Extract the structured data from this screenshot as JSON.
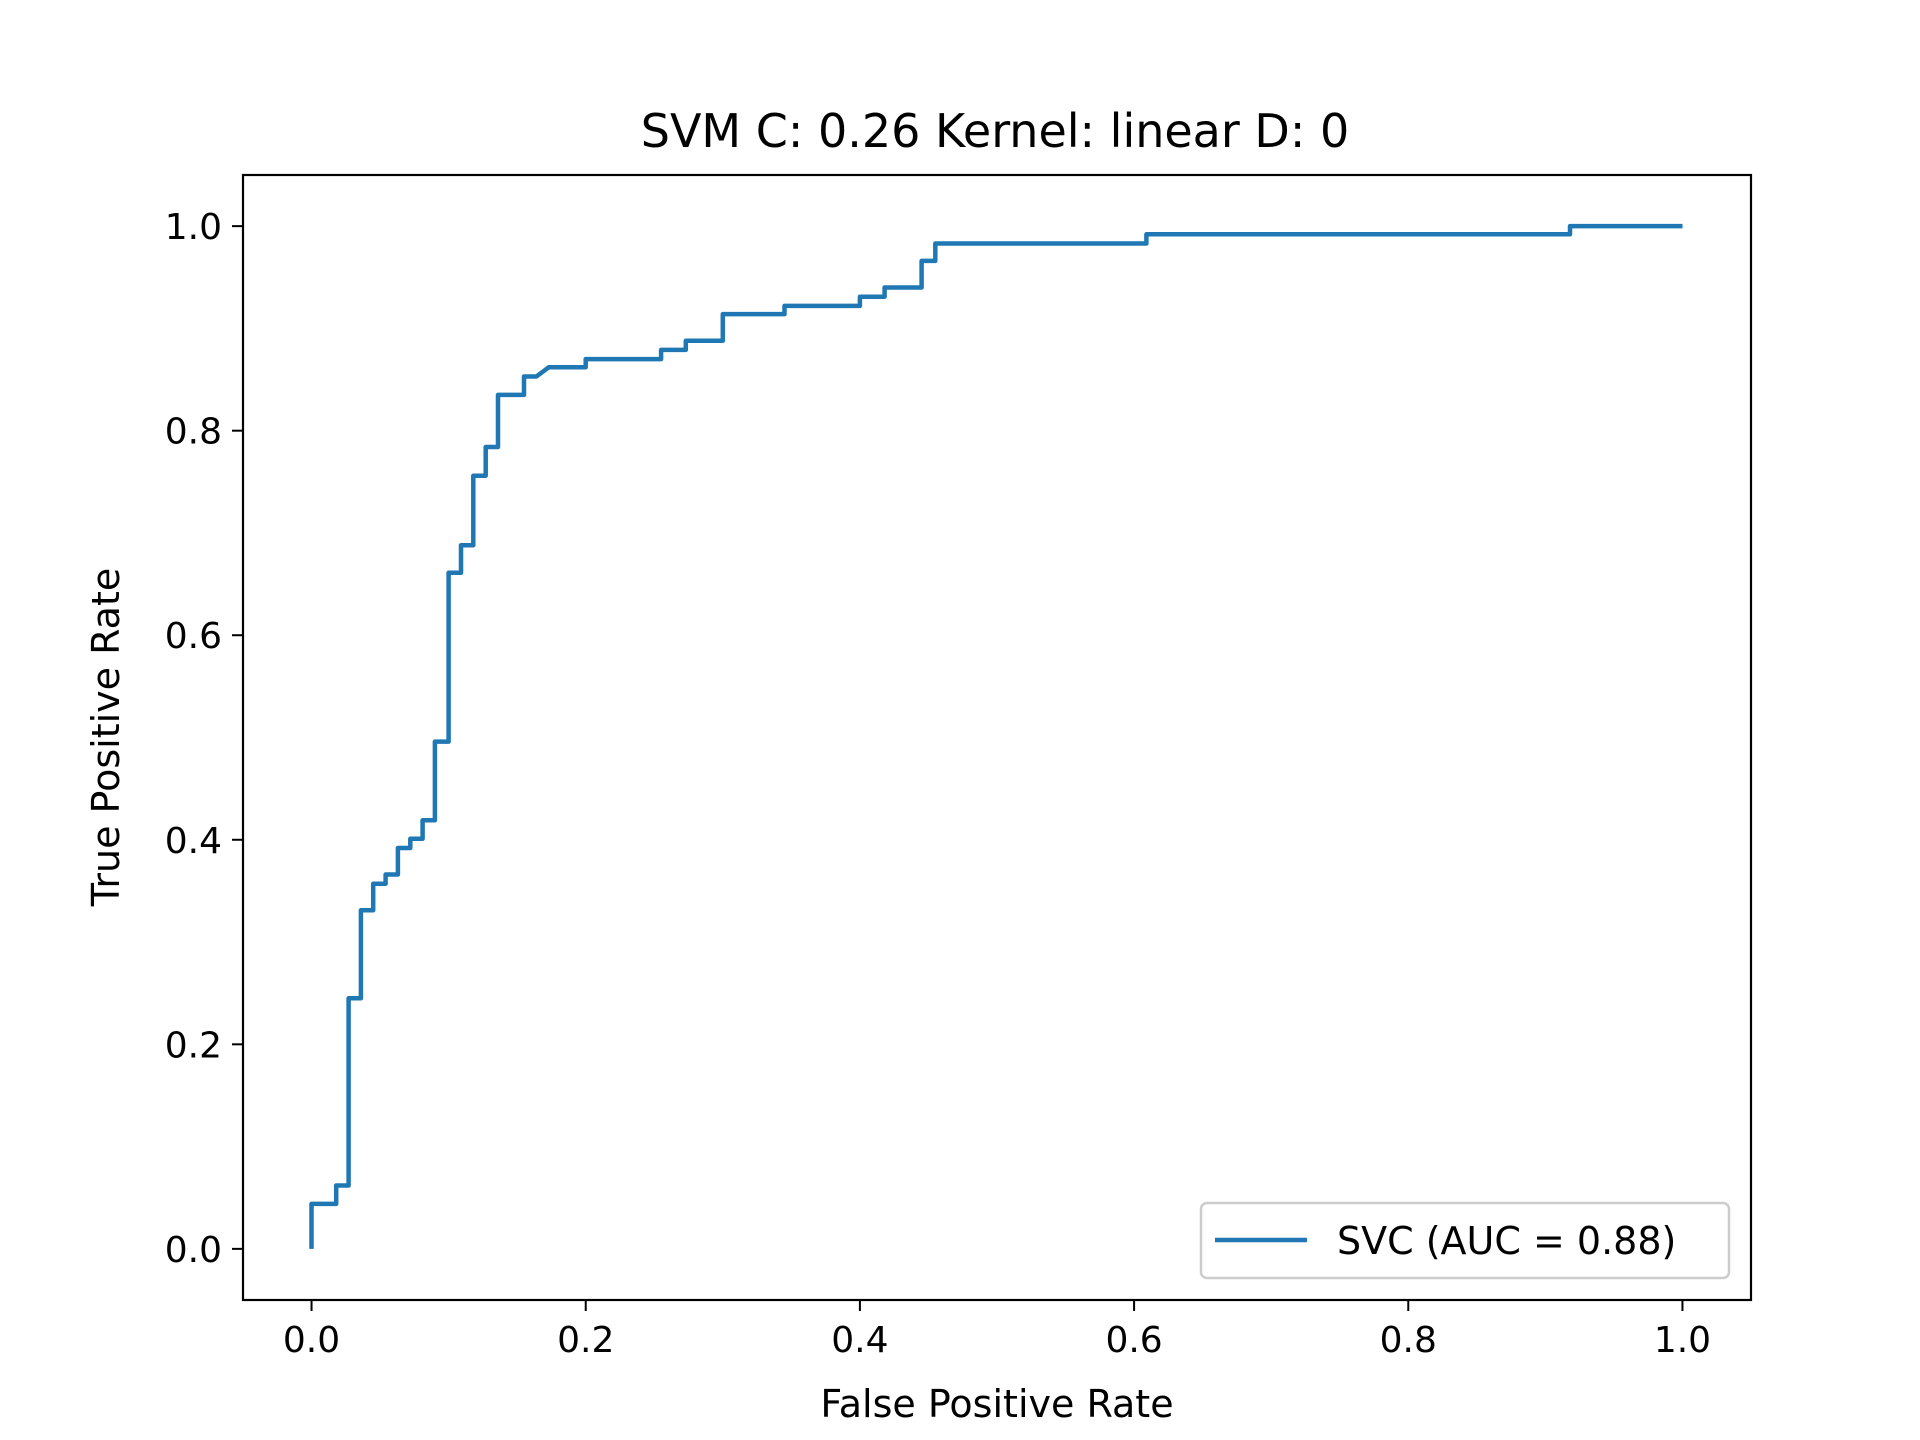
{
  "chart_data": {
    "type": "line",
    "title": "SVM C: 0.26 Kernel: linear D: 0",
    "xlabel": "False Positive Rate",
    "ylabel": "True Positive Rate",
    "xlim": [
      -0.05,
      1.05
    ],
    "ylim": [
      -0.05,
      1.05
    ],
    "xticks": [
      0.0,
      0.2,
      0.4,
      0.6,
      0.8,
      1.0
    ],
    "xtick_labels": [
      "0.0",
      "0.2",
      "0.4",
      "0.6",
      "0.8",
      "1.0"
    ],
    "yticks": [
      0.0,
      0.2,
      0.4,
      0.6,
      0.8,
      1.0
    ],
    "ytick_labels": [
      "0.0",
      "0.2",
      "0.4",
      "0.6",
      "0.8",
      "1.0"
    ],
    "grid": false,
    "legend_position": "lower-right",
    "series": [
      {
        "name": "SVC (AUC = 0.88)",
        "color": "#1f77b4",
        "x": [
          0.0,
          0.0,
          0.018,
          0.018,
          0.027,
          0.027,
          0.036,
          0.036,
          0.045,
          0.045,
          0.054,
          0.054,
          0.063,
          0.063,
          0.072,
          0.072,
          0.081,
          0.081,
          0.09,
          0.09,
          0.1,
          0.1,
          0.109,
          0.109,
          0.118,
          0.118,
          0.127,
          0.127,
          0.136,
          0.136,
          0.155,
          0.155,
          0.164,
          0.173,
          0.2,
          0.2,
          0.255,
          0.255,
          0.273,
          0.273,
          0.3,
          0.3,
          0.345,
          0.345,
          0.4,
          0.4,
          0.418,
          0.418,
          0.445,
          0.445,
          0.455,
          0.455,
          0.609,
          0.609,
          0.918,
          0.918,
          1.0
        ],
        "y": [
          0.0,
          0.044,
          0.044,
          0.062,
          0.062,
          0.245,
          0.245,
          0.331,
          0.331,
          0.357,
          0.357,
          0.366,
          0.366,
          0.392,
          0.392,
          0.401,
          0.401,
          0.419,
          0.419,
          0.496,
          0.496,
          0.661,
          0.661,
          0.688,
          0.688,
          0.756,
          0.756,
          0.784,
          0.784,
          0.835,
          0.835,
          0.853,
          0.853,
          0.862,
          0.862,
          0.87,
          0.87,
          0.879,
          0.879,
          0.888,
          0.888,
          0.914,
          0.914,
          0.922,
          0.922,
          0.931,
          0.931,
          0.94,
          0.94,
          0.966,
          0.966,
          0.983,
          0.983,
          0.992,
          0.992,
          1.0,
          1.0
        ]
      }
    ]
  }
}
